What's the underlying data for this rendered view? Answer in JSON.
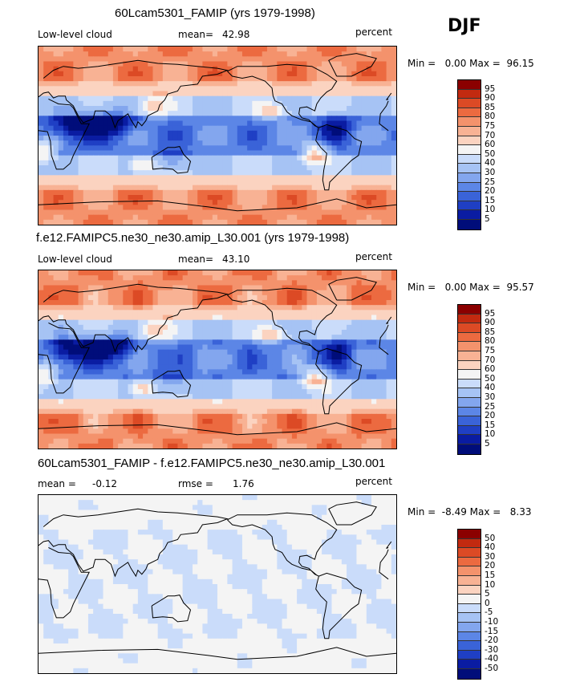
{
  "season": "DJF",
  "panels": [
    {
      "title": "60Lcam5301_FAMIP (yrs 1979-1998)",
      "variable": "Low-level cloud",
      "stat_label": "mean=",
      "stat_value": "42.98",
      "stat2_label": "",
      "stat2_value": "",
      "units": "percent",
      "minmax": "Min =   0.00 Max =  96.15",
      "min": 0.0,
      "max": 96.15,
      "levels": [
        "95",
        "90",
        "85",
        "80",
        "75",
        "70",
        "60",
        "50",
        "40",
        "30",
        "25",
        "20",
        "15",
        "10",
        "5"
      ],
      "colors": [
        "#8b0000",
        "#c22a10",
        "#dc4a25",
        "#ec6a40",
        "#f4926c",
        "#f8b294",
        "#fbd3c0",
        "#f4f4f4",
        "#cadcfa",
        "#a6c3f4",
        "#83a6ee",
        "#5c86e6",
        "#3a63d8",
        "#1f3fc4",
        "#0a1ca2",
        "#000d7a"
      ]
    },
    {
      "title": "f.e12.FAMIPC5.ne30_ne30.amip_L30.001 (yrs 1979-1998)",
      "variable": "Low-level cloud",
      "stat_label": "mean=",
      "stat_value": "43.10",
      "stat2_label": "",
      "stat2_value": "",
      "units": "percent",
      "minmax": "Min =   0.00 Max =  95.57",
      "min": 0.0,
      "max": 95.57,
      "levels": [
        "95",
        "90",
        "85",
        "80",
        "75",
        "70",
        "60",
        "50",
        "40",
        "30",
        "25",
        "20",
        "15",
        "10",
        "5"
      ],
      "colors": [
        "#8b0000",
        "#c22a10",
        "#dc4a25",
        "#ec6a40",
        "#f4926c",
        "#f8b294",
        "#fbd3c0",
        "#f4f4f4",
        "#cadcfa",
        "#a6c3f4",
        "#83a6ee",
        "#5c86e6",
        "#3a63d8",
        "#1f3fc4",
        "#0a1ca2",
        "#000d7a"
      ]
    },
    {
      "title": "60Lcam5301_FAMIP - f.e12.FAMIPC5.ne30_ne30.amip_L30.001",
      "variable": "",
      "stat_label": "mean =",
      "stat_value": "-0.12",
      "stat2_label": "rmse =",
      "stat2_value": "1.76",
      "units": "percent",
      "minmax": "Min =  -8.49 Max =   8.33",
      "min": -8.49,
      "max": 8.33,
      "levels": [
        "50",
        "40",
        "30",
        "20",
        "15",
        "10",
        "5",
        "0",
        "-5",
        "-10",
        "-15",
        "-20",
        "-30",
        "-40",
        "-50"
      ],
      "colors": [
        "#8b0000",
        "#c22a10",
        "#dc4a25",
        "#ec6a40",
        "#f4926c",
        "#f8b294",
        "#fbd3c0",
        "#f4f4f4",
        "#cadcfa",
        "#a6c3f4",
        "#83a6ee",
        "#5c86e6",
        "#3a63d8",
        "#1f3fc4",
        "#0a1ca2",
        "#000d7a"
      ]
    }
  ],
  "chart_data": {
    "type": "heatmap",
    "title": "Low-level cloud, DJF",
    "units": "percent",
    "maps": [
      {
        "name": "60Lcam5301_FAMIP (yrs 1979-1998)",
        "mean": 42.98,
        "min": 0.0,
        "max": 96.15
      },
      {
        "name": "f.e12.FAMIPC5.ne30_ne30.amip_L30.001 (yrs 1979-1998)",
        "mean": 43.1,
        "min": 0.0,
        "max": 95.57
      },
      {
        "name": "60Lcam5301_FAMIP - f.e12.FAMIPC5.ne30_ne30.amip_L30.001",
        "mean": -0.12,
        "rmse": 1.76,
        "min": -8.49,
        "max": 8.33
      }
    ],
    "contour_levels_abs": [
      5,
      10,
      15,
      20,
      25,
      30,
      40,
      50,
      60,
      70,
      75,
      80,
      85,
      90,
      95
    ],
    "contour_levels_diff": [
      -50,
      -40,
      -30,
      -20,
      -15,
      -10,
      -5,
      0,
      5,
      10,
      15,
      20,
      30,
      40,
      50
    ]
  }
}
